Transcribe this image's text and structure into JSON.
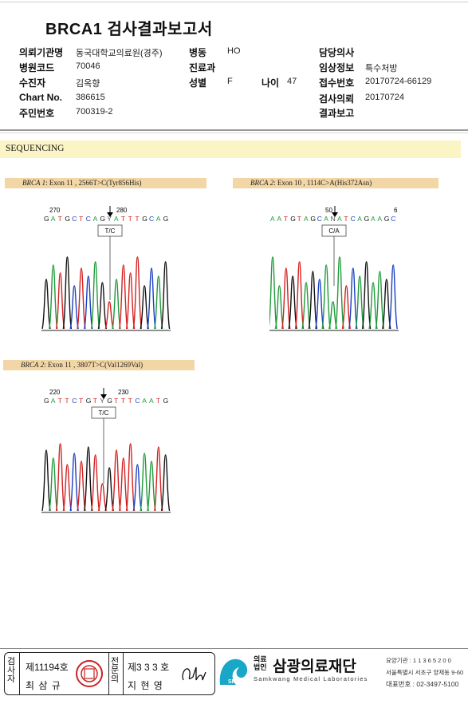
{
  "report": {
    "title": "BRCA1 검사결과보고서"
  },
  "header": {
    "institution_label": "의뢰기관명",
    "institution_value": "동국대학교의료원(경주)",
    "ward_label": "병동",
    "ward_value": "HO",
    "doctor_label": "담당의사",
    "doctor_value": "",
    "hospital_code_label": "병원코드",
    "hospital_code_value": "70046",
    "department_label": "진료과",
    "department_value": "",
    "clinical_label": "임상정보",
    "clinical_value": "특수처방",
    "patient_label": "수진자",
    "patient_value": "김옥향",
    "sex_label": "성별",
    "sex_value": "F",
    "age_label": "나이",
    "age_value": "47",
    "receipt_label": "접수번호",
    "receipt_value": "20170724-66129",
    "chart_label": "Chart No.",
    "chart_value": "386615",
    "request_label": "검사의뢰",
    "request_value": "20170724",
    "resident_label": "주민번호",
    "resident_value": "700319-2",
    "result_label": "결과보고",
    "result_value": ""
  },
  "section": {
    "title": "SEQUENCING"
  },
  "variants": [
    {
      "gene": "BRCA 1",
      "detail": ": Exon 11 , 2566T>C(Tyr856His)",
      "pos_left": "270",
      "pos_right": "280",
      "sequence": "GATGCTCAGYATTTGCAG",
      "call": "T/C"
    },
    {
      "gene": "BRCA 2",
      "detail": ": Exon 10 , 1114C>A(His372Asn)",
      "pos_left": "",
      "pos_right": "50",
      "sequence": "AATGTAGCANATCAGAAGC",
      "call": "C/A"
    },
    {
      "gene": "BRCA 2",
      "detail": ": Exon 11 , 3807T>C(Val1269Val)",
      "pos_left": "220",
      "pos_right": "230",
      "sequence": "GATTCTGTYGTTTCAATG",
      "call": "T/C"
    }
  ],
  "footer": {
    "tester_vertical": "검사자",
    "tester_license": "제11194호",
    "tester_name": "최 삼 규",
    "specialist_vertical": "전문의",
    "specialist_license": "제3 3 3 호",
    "specialist_name": "지 현 영",
    "lab_prefix": "의료법인",
    "lab_name": "삼광의료재단",
    "lab_english": "Samkwang Medical Laboratories",
    "logo_text": "SML",
    "code_line": "요양기관 : 1 1 3 6 5 2 0 0",
    "address_line": "서울특별시 서초구 양재동 9-60",
    "phone_line": "대표번호 : 02-3497-5100"
  },
  "colors": {
    "A": "#1f9a3a",
    "C": "#1a3fc0",
    "G": "#111111",
    "T": "#d42020",
    "tag_bg": "#f3d6a5",
    "band_bg": "#fbf4c4"
  }
}
